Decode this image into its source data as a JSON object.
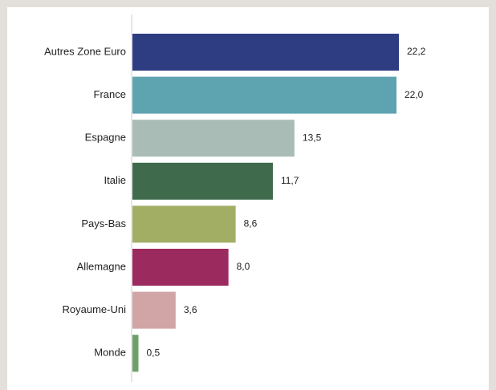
{
  "colors": {
    "background": "#e3dfda",
    "panel": "#ffffff",
    "axis": "#cccccc",
    "text": "#222222"
  },
  "chart_data": {
    "type": "bar",
    "orientation": "horizontal",
    "categories": [
      "Autres Zone Euro",
      "France",
      "Espagne",
      "Italie",
      "Pays-Bas",
      "Allemagne",
      "Royaume-Uni",
      "Monde"
    ],
    "values": [
      22.2,
      22.0,
      13.5,
      11.7,
      8.6,
      8.0,
      3.6,
      0.5
    ],
    "value_labels": [
      "22,2",
      "22,0",
      "13,5",
      "11,7",
      "8,6",
      "8,0",
      "3,6",
      "0,5"
    ],
    "bar_colors": [
      "#2e3c82",
      "#5ea3b0",
      "#a9bdb6",
      "#3f6b4c",
      "#a3ae65",
      "#9b2a5f",
      "#d1a5a6",
      "#6da169"
    ],
    "xlim": [
      0,
      24
    ],
    "grid": false,
    "legend": "none",
    "title": "",
    "xlabel": "",
    "ylabel": ""
  }
}
